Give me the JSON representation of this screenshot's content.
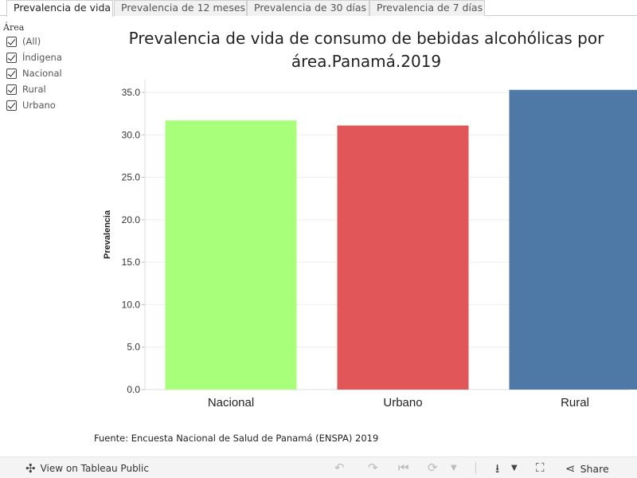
{
  "tabs": [
    {
      "label": "Prevalencia de vida",
      "active": true
    },
    {
      "label": "Prevalencia de 12 meses",
      "active": false
    },
    {
      "label": "Prevalencia de 30 días",
      "active": false
    },
    {
      "label": "Prevalencia de 7 días",
      "active": false
    }
  ],
  "filter": {
    "title": "Área",
    "items": [
      "(All)",
      "Índigena",
      "Nacional",
      "Rural",
      "Urbano"
    ]
  },
  "source_note": "Fuente: Encuesta Nacional de Salud de Panamá (ENSPA) 2019",
  "footer": {
    "view_label": "View on Tableau Public",
    "share_label": "Share"
  },
  "chart_data": {
    "type": "bar",
    "title": "Prevalencia de vida de consumo de bebidas alcohólicas por área.Panamá.2019",
    "xlabel": "",
    "ylabel": "Prevalencia",
    "categories": [
      "Nacional",
      "Urbano",
      "Rural"
    ],
    "values": [
      31.7,
      31.1,
      35.3
    ],
    "colors": [
      "#a8ff7a",
      "#e15759",
      "#4e79a7"
    ],
    "ylim": [
      0,
      36.5
    ],
    "yticks": [
      "0.0",
      "5.0",
      "10.0",
      "15.0",
      "20.0",
      "25.0",
      "30.0",
      "35.0"
    ],
    "grid": true,
    "legend": "none"
  }
}
